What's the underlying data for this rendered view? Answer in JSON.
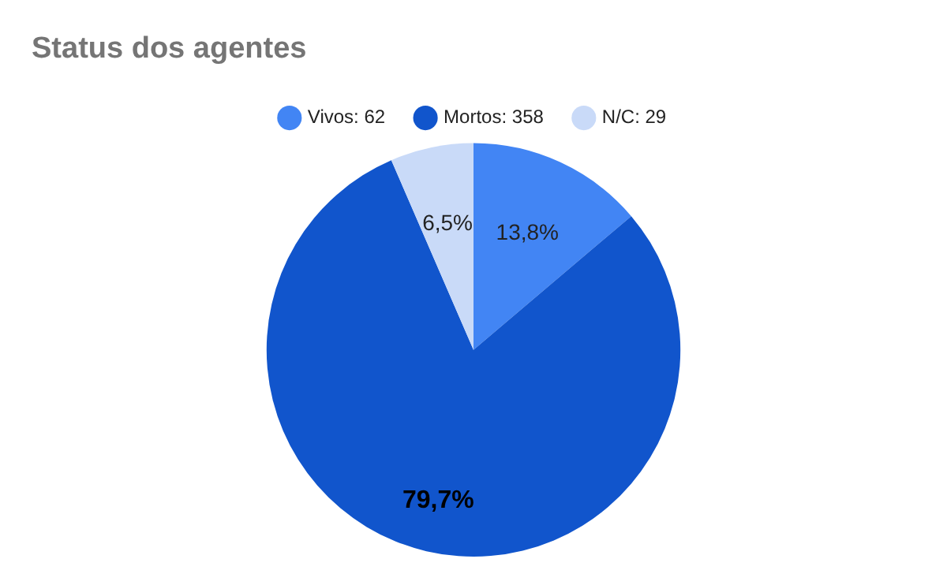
{
  "chart_data": {
    "type": "pie",
    "title": "Status dos agentes",
    "categories": [
      "Vivos: 62",
      "Mortos: 358",
      "N/C: 29"
    ],
    "values": [
      13.8,
      79.7,
      6.5
    ],
    "colors": [
      "#4285f4",
      "#1155cc",
      "#c9daf8"
    ],
    "value_labels": [
      "13,8%",
      "79,7%",
      "6,5%"
    ],
    "legend": "top"
  }
}
